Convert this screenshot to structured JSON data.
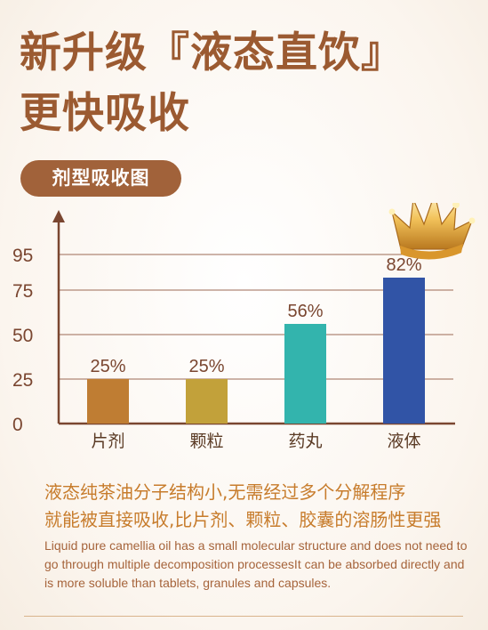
{
  "header": {
    "line1": "新升级『液态直饮』",
    "line2": "更快吸收"
  },
  "section_label": "剂型吸收图",
  "chart_data": {
    "type": "bar",
    "categories": [
      "片剂",
      "颗粒",
      "药丸",
      "液体"
    ],
    "values": [
      25,
      25,
      56,
      82
    ],
    "data_labels": [
      "25%",
      "25%",
      "56%",
      "82%"
    ],
    "colors": [
      "#bf7d33",
      "#c2a13a",
      "#33b4ad",
      "#3154a6"
    ],
    "yticks": [
      0,
      25,
      50,
      75,
      95
    ],
    "ylim": [
      0,
      100
    ],
    "grid": true,
    "title": "",
    "xlabel": "",
    "ylabel": "",
    "highlight": {
      "category": "液体",
      "icon": "crown-icon"
    }
  },
  "description": {
    "zh_line1": "液态纯茶油分子结构小,无需经过多个分解程序",
    "zh_line2": "就能被直接吸收,比片剂、颗粒、胶囊的溶肠性更强",
    "en_line1": "Liquid pure camellia oil has a small molecular structure and does not need to",
    "en_line2": "go through multiple decomposition processesIt can be absorbed directly and",
    "en_line3": "is more soluble than tablets, granules and capsules."
  }
}
